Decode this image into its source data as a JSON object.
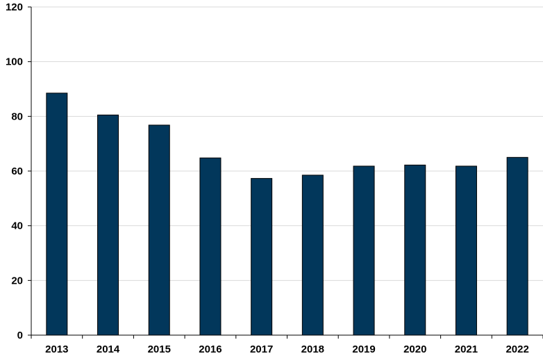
{
  "chart_data": {
    "type": "bar",
    "title": "",
    "xlabel": "",
    "ylabel": "",
    "categories": [
      "2013",
      "2014",
      "2015",
      "2016",
      "2017",
      "2018",
      "2019",
      "2020",
      "2021",
      "2022"
    ],
    "values": [
      88.5,
      80.5,
      76.8,
      64.8,
      57.3,
      58.5,
      61.8,
      62.2,
      61.8,
      65.0
    ],
    "ylim": [
      0,
      120
    ],
    "yticks": [
      "0",
      "20",
      "40",
      "60",
      "80",
      "100",
      "120"
    ],
    "grid": true,
    "legend": "none",
    "colors": {
      "bar": "#02375B",
      "bar_outline": "#000000",
      "grid": "#D9D9D9",
      "axis": "#000000"
    }
  }
}
